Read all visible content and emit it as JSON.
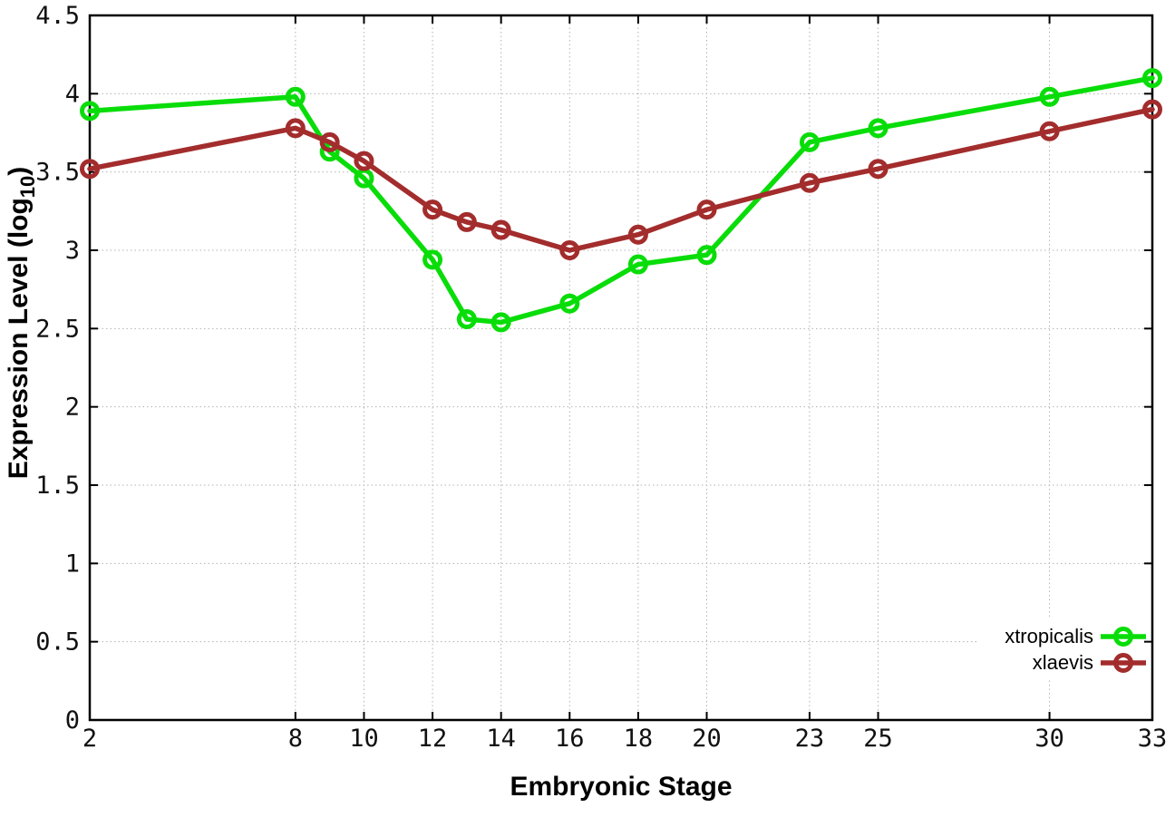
{
  "figure": {
    "background": "#ffffff"
  },
  "chart_data": {
    "type": "line",
    "title": "",
    "xlabel": "Embryonic Stage",
    "ylabel": "Expression Level (log10)",
    "ylabel_parts": {
      "main": "Expression Level (log",
      "sub": "10",
      "end": ")"
    },
    "xlim": [
      2,
      33
    ],
    "ylim": [
      0,
      4.5
    ],
    "xticks": [
      2,
      8,
      10,
      12,
      14,
      16,
      18,
      20,
      23,
      25,
      30,
      33
    ],
    "yticks": [
      0,
      0.5,
      1,
      1.5,
      2,
      2.5,
      3,
      3.5,
      4,
      4.5
    ],
    "grid": true,
    "axis_color": "#000000",
    "grid_color": "#b3b3b3",
    "legend": {
      "position": "bottom-right-inside",
      "entries": [
        "xtropicalis",
        "xlaevis"
      ]
    },
    "x": [
      2,
      8,
      9,
      10,
      12,
      13,
      14,
      16,
      18,
      20,
      23,
      25,
      30,
      33
    ],
    "series": [
      {
        "name": "xtropicalis",
        "color": "#09dd09",
        "marker": "open-circle",
        "values": [
          3.89,
          3.98,
          3.63,
          3.46,
          2.94,
          2.56,
          2.54,
          2.66,
          2.91,
          2.97,
          3.69,
          3.78,
          3.98,
          4.1
        ]
      },
      {
        "name": "xlaevis",
        "color": "#a32c2c",
        "marker": "open-circle",
        "values": [
          3.52,
          3.78,
          3.69,
          3.57,
          3.26,
          3.18,
          3.13,
          3.0,
          3.1,
          3.26,
          3.43,
          3.52,
          3.76,
          3.9
        ]
      }
    ]
  }
}
